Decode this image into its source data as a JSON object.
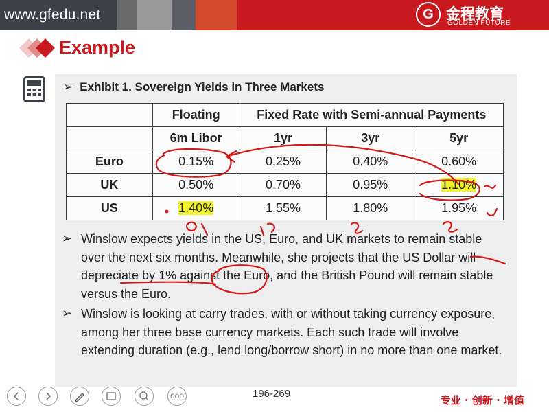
{
  "header": {
    "url": "www.gfedu.net",
    "logo_mark": "G",
    "logo_cn": "金程教育",
    "logo_en": "GOLDEN FUTURE"
  },
  "slide": {
    "title": "Example",
    "exhibit_title": "Exhibit 1. Sovereign Yields in Three Markets",
    "bullet_glyph": "➢"
  },
  "table": {
    "group_headers": [
      "Floating",
      "Fixed Rate with Semi-annual Payments"
    ],
    "column_headers": [
      "6m Libor",
      "1yr",
      "3yr",
      "5yr"
    ],
    "rows": [
      {
        "label": "Euro",
        "values": [
          "0.15%",
          "0.25%",
          "0.40%",
          "0.60%"
        ]
      },
      {
        "label": "UK",
        "values": [
          "0.50%",
          "0.70%",
          "0.95%",
          "1.10%"
        ]
      },
      {
        "label": "US",
        "values": [
          "1.40%",
          "1.55%",
          "1.80%",
          "1.95%"
        ]
      }
    ]
  },
  "paragraphs": [
    "Winslow expects yields in the US, Euro, and UK markets to remain stable over the next six months. Meanwhile, she projects that the US Dollar will depreciate by 1% against the Euro, and the British Pound will remain stable versus the Euro.",
    "Winslow is looking at carry trades, with or without taking currency exposure, among her three base currency markets. Each such trade will involve extending duration (e.g., lend long/borrow short) in no more than one market."
  ],
  "footer": {
    "page": "196-269",
    "slogan": "专业 · 创新 · 增值",
    "menu_glyph": "ooo"
  },
  "colors": {
    "brand_red": "#c8191f",
    "dark_gray": "#3d4049",
    "ink_red": "#d21818",
    "highlight": "#f2f22a"
  }
}
